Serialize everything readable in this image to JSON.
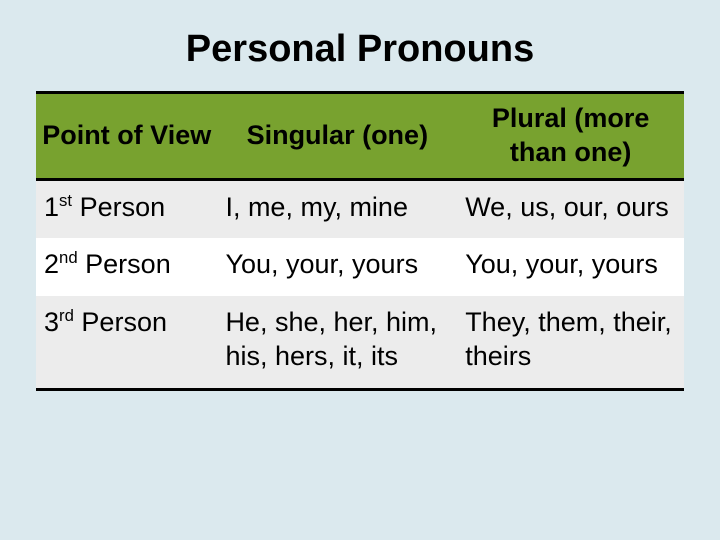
{
  "title": "Personal Pronouns",
  "title_fontsize": 38,
  "colors": {
    "background": "#dbe9ee",
    "header_bg": "#78a22f",
    "zebra_bg": "#ececec",
    "border": "#000000",
    "text": "#000000"
  },
  "header_fontsize": 27,
  "cell_fontsize": 27,
  "table": {
    "columns": [
      "Point of View",
      "Singular (one)",
      "Plural (more than one)"
    ],
    "column_widths_pct": [
      28,
      37,
      35
    ],
    "rows": [
      {
        "pov_ord": "1",
        "pov_suffix": "st",
        "pov_word": " Person",
        "singular": "I, me, my, mine",
        "plural": "We, us, our, ours",
        "zebra": true
      },
      {
        "pov_ord": "2",
        "pov_suffix": "nd",
        "pov_word": " Person",
        "singular": "You, your, yours",
        "plural": "You, your, yours",
        "zebra": false
      },
      {
        "pov_ord": "3",
        "pov_suffix": "rd",
        "pov_word": " Person",
        "singular": "He, she, her, him, his, hers, it, its",
        "plural": "They, them, their, theirs",
        "zebra": true
      }
    ]
  }
}
